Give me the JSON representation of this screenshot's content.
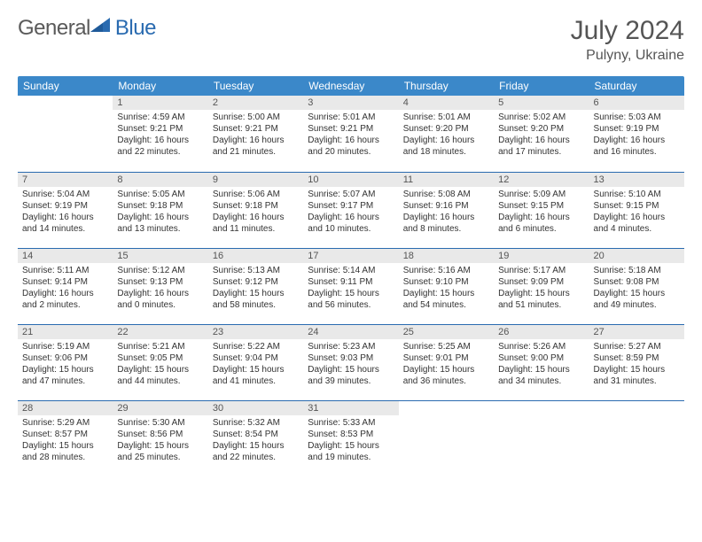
{
  "logo": {
    "general": "General",
    "blue": "Blue"
  },
  "title": "July 2024",
  "location": "Pulyny, Ukraine",
  "headers": [
    "Sunday",
    "Monday",
    "Tuesday",
    "Wednesday",
    "Thursday",
    "Friday",
    "Saturday"
  ],
  "colors": {
    "header_bg": "#3b88c9",
    "border": "#2a6bb0",
    "daynum_bg": "#e9e9e9"
  },
  "weeks": [
    [
      {
        "n": "",
        "sunrise": "",
        "sunset": "",
        "daylight": ""
      },
      {
        "n": "1",
        "sunrise": "Sunrise: 4:59 AM",
        "sunset": "Sunset: 9:21 PM",
        "daylight": "Daylight: 16 hours and 22 minutes."
      },
      {
        "n": "2",
        "sunrise": "Sunrise: 5:00 AM",
        "sunset": "Sunset: 9:21 PM",
        "daylight": "Daylight: 16 hours and 21 minutes."
      },
      {
        "n": "3",
        "sunrise": "Sunrise: 5:01 AM",
        "sunset": "Sunset: 9:21 PM",
        "daylight": "Daylight: 16 hours and 20 minutes."
      },
      {
        "n": "4",
        "sunrise": "Sunrise: 5:01 AM",
        "sunset": "Sunset: 9:20 PM",
        "daylight": "Daylight: 16 hours and 18 minutes."
      },
      {
        "n": "5",
        "sunrise": "Sunrise: 5:02 AM",
        "sunset": "Sunset: 9:20 PM",
        "daylight": "Daylight: 16 hours and 17 minutes."
      },
      {
        "n": "6",
        "sunrise": "Sunrise: 5:03 AM",
        "sunset": "Sunset: 9:19 PM",
        "daylight": "Daylight: 16 hours and 16 minutes."
      }
    ],
    [
      {
        "n": "7",
        "sunrise": "Sunrise: 5:04 AM",
        "sunset": "Sunset: 9:19 PM",
        "daylight": "Daylight: 16 hours and 14 minutes."
      },
      {
        "n": "8",
        "sunrise": "Sunrise: 5:05 AM",
        "sunset": "Sunset: 9:18 PM",
        "daylight": "Daylight: 16 hours and 13 minutes."
      },
      {
        "n": "9",
        "sunrise": "Sunrise: 5:06 AM",
        "sunset": "Sunset: 9:18 PM",
        "daylight": "Daylight: 16 hours and 11 minutes."
      },
      {
        "n": "10",
        "sunrise": "Sunrise: 5:07 AM",
        "sunset": "Sunset: 9:17 PM",
        "daylight": "Daylight: 16 hours and 10 minutes."
      },
      {
        "n": "11",
        "sunrise": "Sunrise: 5:08 AM",
        "sunset": "Sunset: 9:16 PM",
        "daylight": "Daylight: 16 hours and 8 minutes."
      },
      {
        "n": "12",
        "sunrise": "Sunrise: 5:09 AM",
        "sunset": "Sunset: 9:15 PM",
        "daylight": "Daylight: 16 hours and 6 minutes."
      },
      {
        "n": "13",
        "sunrise": "Sunrise: 5:10 AM",
        "sunset": "Sunset: 9:15 PM",
        "daylight": "Daylight: 16 hours and 4 minutes."
      }
    ],
    [
      {
        "n": "14",
        "sunrise": "Sunrise: 5:11 AM",
        "sunset": "Sunset: 9:14 PM",
        "daylight": "Daylight: 16 hours and 2 minutes."
      },
      {
        "n": "15",
        "sunrise": "Sunrise: 5:12 AM",
        "sunset": "Sunset: 9:13 PM",
        "daylight": "Daylight: 16 hours and 0 minutes."
      },
      {
        "n": "16",
        "sunrise": "Sunrise: 5:13 AM",
        "sunset": "Sunset: 9:12 PM",
        "daylight": "Daylight: 15 hours and 58 minutes."
      },
      {
        "n": "17",
        "sunrise": "Sunrise: 5:14 AM",
        "sunset": "Sunset: 9:11 PM",
        "daylight": "Daylight: 15 hours and 56 minutes."
      },
      {
        "n": "18",
        "sunrise": "Sunrise: 5:16 AM",
        "sunset": "Sunset: 9:10 PM",
        "daylight": "Daylight: 15 hours and 54 minutes."
      },
      {
        "n": "19",
        "sunrise": "Sunrise: 5:17 AM",
        "sunset": "Sunset: 9:09 PM",
        "daylight": "Daylight: 15 hours and 51 minutes."
      },
      {
        "n": "20",
        "sunrise": "Sunrise: 5:18 AM",
        "sunset": "Sunset: 9:08 PM",
        "daylight": "Daylight: 15 hours and 49 minutes."
      }
    ],
    [
      {
        "n": "21",
        "sunrise": "Sunrise: 5:19 AM",
        "sunset": "Sunset: 9:06 PM",
        "daylight": "Daylight: 15 hours and 47 minutes."
      },
      {
        "n": "22",
        "sunrise": "Sunrise: 5:21 AM",
        "sunset": "Sunset: 9:05 PM",
        "daylight": "Daylight: 15 hours and 44 minutes."
      },
      {
        "n": "23",
        "sunrise": "Sunrise: 5:22 AM",
        "sunset": "Sunset: 9:04 PM",
        "daylight": "Daylight: 15 hours and 41 minutes."
      },
      {
        "n": "24",
        "sunrise": "Sunrise: 5:23 AM",
        "sunset": "Sunset: 9:03 PM",
        "daylight": "Daylight: 15 hours and 39 minutes."
      },
      {
        "n": "25",
        "sunrise": "Sunrise: 5:25 AM",
        "sunset": "Sunset: 9:01 PM",
        "daylight": "Daylight: 15 hours and 36 minutes."
      },
      {
        "n": "26",
        "sunrise": "Sunrise: 5:26 AM",
        "sunset": "Sunset: 9:00 PM",
        "daylight": "Daylight: 15 hours and 34 minutes."
      },
      {
        "n": "27",
        "sunrise": "Sunrise: 5:27 AM",
        "sunset": "Sunset: 8:59 PM",
        "daylight": "Daylight: 15 hours and 31 minutes."
      }
    ],
    [
      {
        "n": "28",
        "sunrise": "Sunrise: 5:29 AM",
        "sunset": "Sunset: 8:57 PM",
        "daylight": "Daylight: 15 hours and 28 minutes."
      },
      {
        "n": "29",
        "sunrise": "Sunrise: 5:30 AM",
        "sunset": "Sunset: 8:56 PM",
        "daylight": "Daylight: 15 hours and 25 minutes."
      },
      {
        "n": "30",
        "sunrise": "Sunrise: 5:32 AM",
        "sunset": "Sunset: 8:54 PM",
        "daylight": "Daylight: 15 hours and 22 minutes."
      },
      {
        "n": "31",
        "sunrise": "Sunrise: 5:33 AM",
        "sunset": "Sunset: 8:53 PM",
        "daylight": "Daylight: 15 hours and 19 minutes."
      },
      {
        "n": "",
        "sunrise": "",
        "sunset": "",
        "daylight": ""
      },
      {
        "n": "",
        "sunrise": "",
        "sunset": "",
        "daylight": ""
      },
      {
        "n": "",
        "sunrise": "",
        "sunset": "",
        "daylight": ""
      }
    ]
  ]
}
